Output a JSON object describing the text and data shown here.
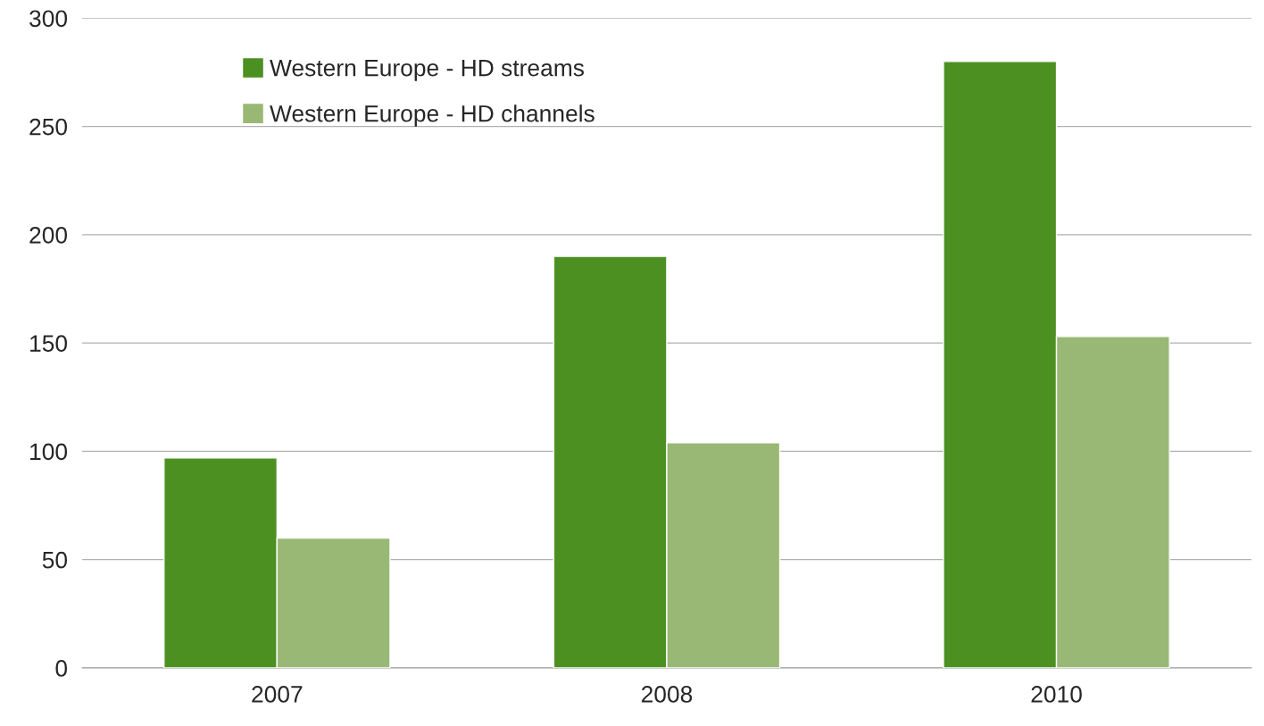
{
  "chart_data": {
    "type": "bar",
    "categories": [
      "2007",
      "2008",
      "2010"
    ],
    "series": [
      {
        "name": "Western Europe - HD streams",
        "color": "#4c9022",
        "values": [
          97,
          190,
          280
        ]
      },
      {
        "name": "Western Europe - HD channels",
        "color": "#9ab875",
        "values": [
          60,
          104,
          153
        ]
      }
    ],
    "ylim": [
      0,
      300
    ],
    "yticks": [
      0,
      50,
      100,
      150,
      200,
      250,
      300
    ],
    "grid": "y",
    "legend": "top left"
  }
}
